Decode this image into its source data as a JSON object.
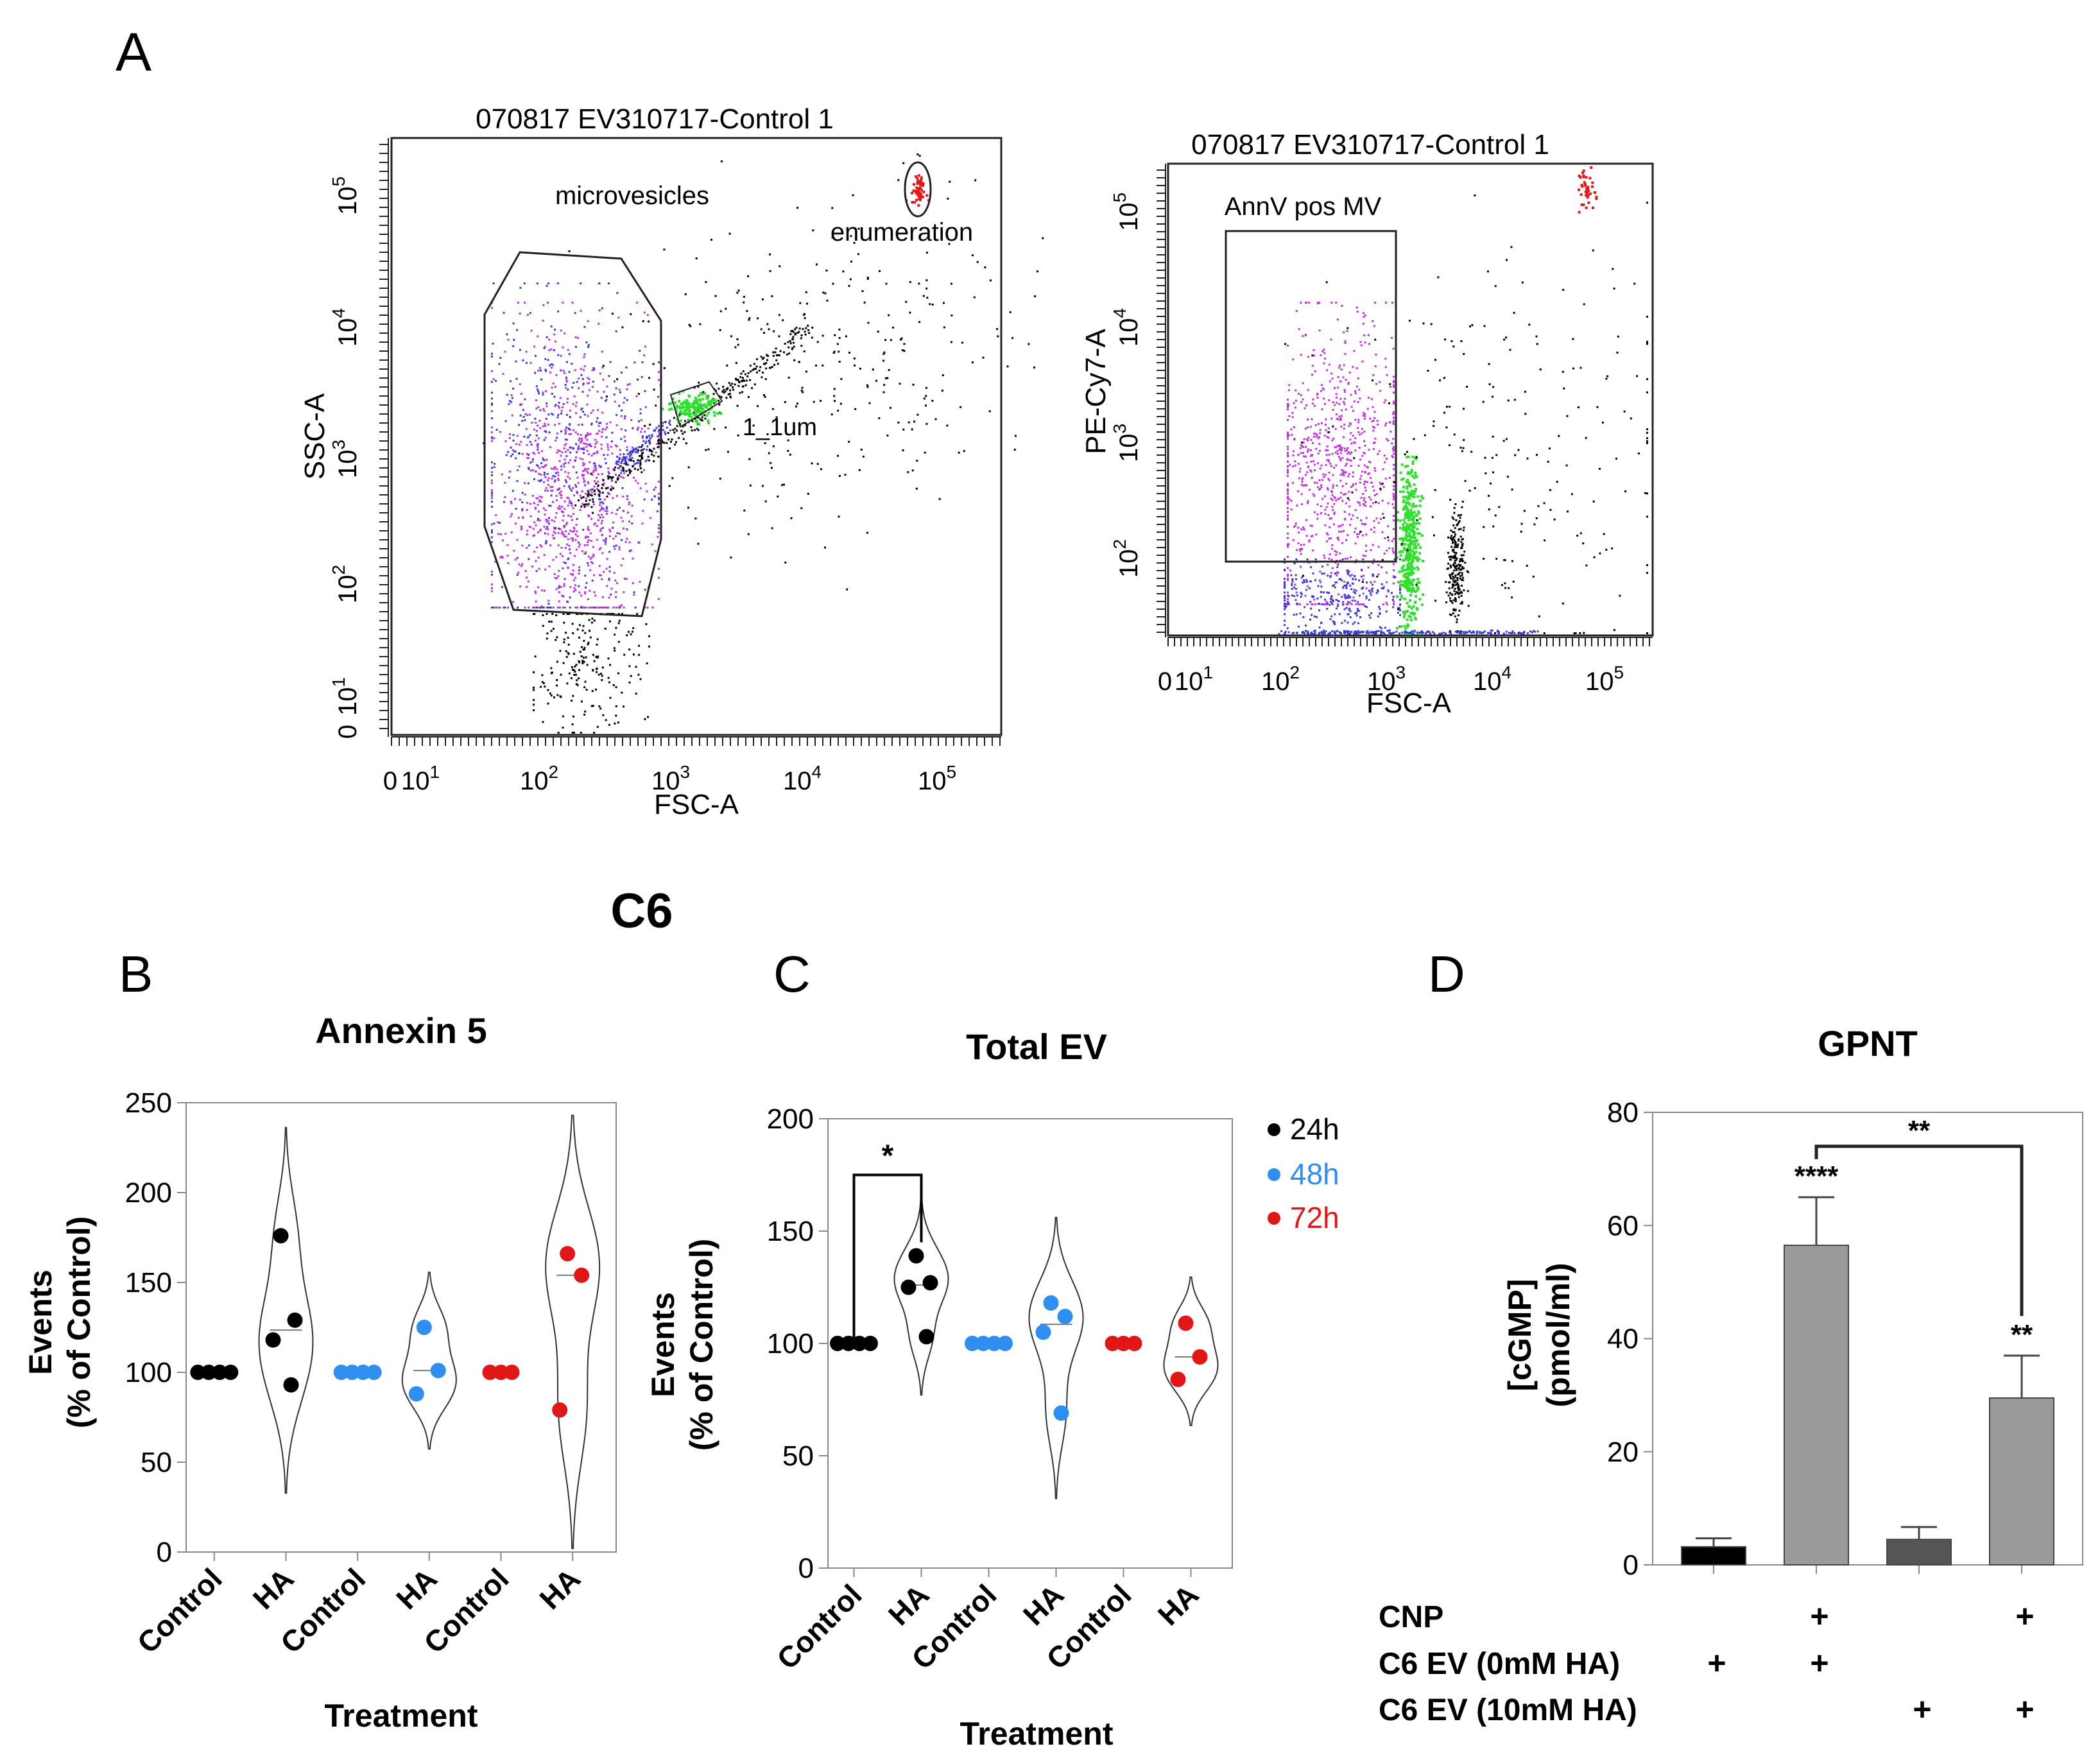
{
  "panel_labels": {
    "a": "A",
    "b": "B",
    "c": "C",
    "d": "D"
  },
  "section_title": "C6",
  "colors": {
    "black": "#000000",
    "blue": "#2e8ff0",
    "red": "#e11717",
    "purple": "#c533e0",
    "dark_blue": "#3a3ad6",
    "green": "#2fe02f",
    "bar_gray": "#9a9a9a",
    "bar_dark": "#555555"
  },
  "chart_data": [
    {
      "id": "A1",
      "type": "scatter",
      "title": "070817 EV310717-Control 1",
      "xlabel": "FSC-A",
      "ylabel": "SSC-A",
      "scale": "log",
      "xticks": [
        "0",
        "10^1",
        "10^2",
        "10^3",
        "10^4",
        "10^5"
      ],
      "yticks": [
        "0",
        "10^1",
        "10^2",
        "10^3",
        "10^4",
        "10^5"
      ],
      "gates": [
        {
          "label": "microvesicles",
          "shape": "polygon"
        },
        {
          "label": "enumeration",
          "shape": "ellipse"
        },
        {
          "label": "1_1um",
          "shape": "polygon"
        }
      ],
      "populations": [
        "microvesicles (purple/blue)",
        "1 um beads (green)",
        "enumeration beads (red)",
        "other events (black)"
      ]
    },
    {
      "id": "A2",
      "type": "scatter",
      "title": "070817 EV310717-Control 1",
      "xlabel": "FSC-A",
      "ylabel": "PE-Cy7-A",
      "scale": "log",
      "xticks": [
        "0",
        "10^1",
        "10^2",
        "10^3",
        "10^4",
        "10^5"
      ],
      "yticks": [
        "10^2",
        "10^3",
        "10^4",
        "10^5"
      ],
      "gates": [
        {
          "label": "AnnV pos MV",
          "shape": "rectangle"
        }
      ]
    },
    {
      "id": "B",
      "type": "violin",
      "title": "Annexin 5",
      "xlabel": "Treatment",
      "ylabel_lines": [
        "Events",
        "(% of Control)"
      ],
      "ylim": [
        0,
        250
      ],
      "yticks": [
        0,
        50,
        100,
        150,
        200,
        250
      ],
      "categories": [
        "Control",
        "HA",
        "Control",
        "HA",
        "Control",
        "HA"
      ],
      "groups": [
        {
          "time": "24h",
          "color": "black",
          "control": [
            100,
            100,
            100,
            100
          ],
          "ha": [
            176,
            129,
            118,
            93
          ]
        },
        {
          "time": "48h",
          "color": "blue",
          "control": [
            100,
            100,
            100,
            100
          ],
          "ha": [
            125,
            101,
            88
          ]
        },
        {
          "time": "72h",
          "color": "red",
          "control": [
            100,
            100,
            100
          ],
          "ha": [
            166,
            154,
            79
          ]
        }
      ]
    },
    {
      "id": "C",
      "type": "violin",
      "title": "Total EV",
      "xlabel": "Treatment",
      "ylabel_lines": [
        "Events",
        "(% of Control)"
      ],
      "ylim": [
        0,
        200
      ],
      "yticks": [
        0,
        50,
        100,
        150,
        200
      ],
      "categories": [
        "Control",
        "HA",
        "Control",
        "HA",
        "Control",
        "HA"
      ],
      "legend": [
        "24h",
        "48h",
        "72h"
      ],
      "significance": [
        {
          "from": 0,
          "to": 1,
          "label": "*"
        }
      ],
      "groups": [
        {
          "time": "24h",
          "color": "black",
          "control": [
            100,
            100,
            100,
            100
          ],
          "ha": [
            139,
            127,
            125,
            103
          ]
        },
        {
          "time": "48h",
          "color": "blue",
          "control": [
            100,
            100,
            100,
            100
          ],
          "ha": [
            118,
            112,
            105,
            69
          ]
        },
        {
          "time": "72h",
          "color": "red",
          "control": [
            100,
            100,
            100
          ],
          "ha": [
            109,
            94,
            84
          ]
        }
      ]
    },
    {
      "id": "D",
      "type": "bar",
      "title": "GPNT",
      "ylabel_lines": [
        "[cGMP]",
        "(pmol/ml)"
      ],
      "ylim": [
        0,
        80
      ],
      "yticks": [
        0,
        20,
        40,
        60,
        80
      ],
      "values": [
        3.2,
        56.5,
        4.5,
        29.5
      ],
      "errors": [
        1.5,
        8.5,
        2.2,
        7.5
      ],
      "bar_colors": [
        "black",
        "bar_gray",
        "bar_dark",
        "bar_gray"
      ],
      "stars": [
        "",
        "****",
        "",
        "**"
      ],
      "bracket": {
        "from": 1,
        "to": 3,
        "label": "**"
      },
      "condition_rows": [
        {
          "label": "CNP",
          "marks": [
            "",
            "+",
            "",
            "+"
          ]
        },
        {
          "label": "C6 EV (0mM HA)",
          "marks": [
            "+",
            "+",
            "",
            ""
          ]
        },
        {
          "label": "C6 EV (10mM HA)",
          "marks": [
            "",
            "",
            "+",
            "+"
          ]
        }
      ]
    }
  ]
}
